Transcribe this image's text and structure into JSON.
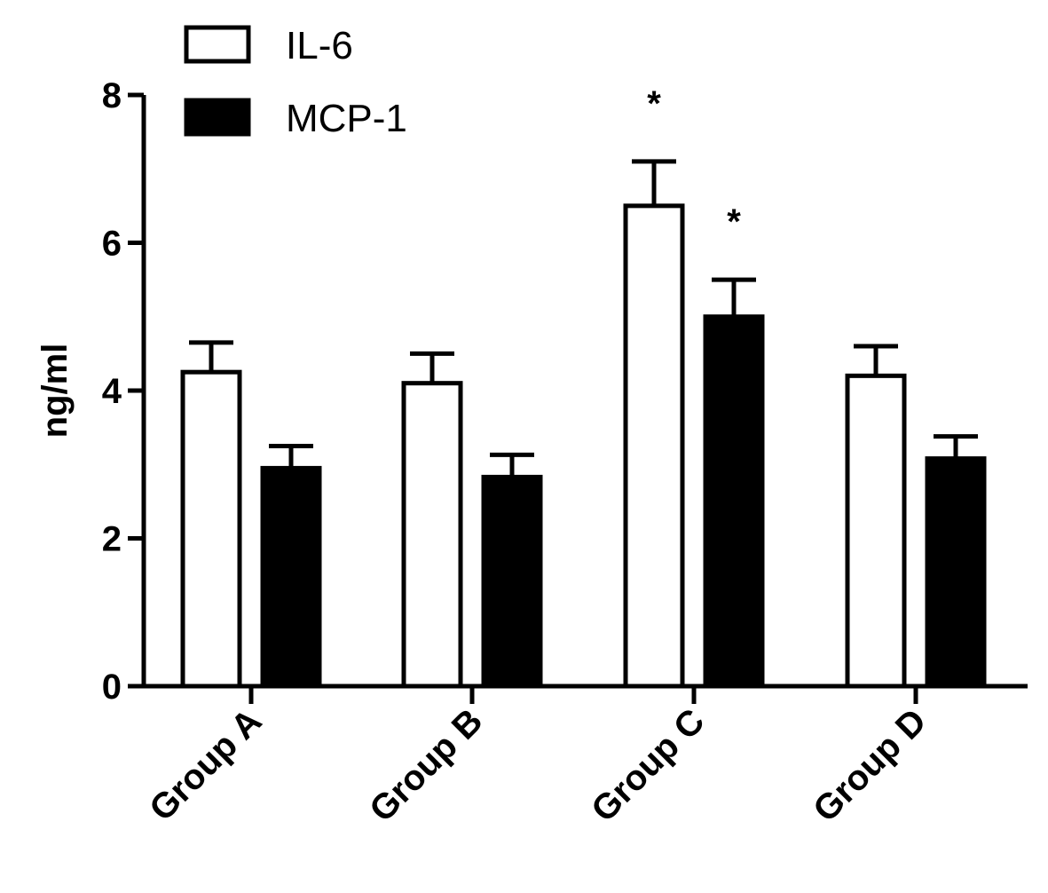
{
  "chart_data": {
    "type": "bar",
    "title": "",
    "xlabel": "",
    "ylabel": "ng/ml",
    "ylim": [
      0,
      8
    ],
    "yticks": [
      "0",
      "2",
      "4",
      "6",
      "8"
    ],
    "grid": false,
    "legend_position": "top-left",
    "categories": [
      "Group A",
      "Group B",
      "Group C",
      "Group D"
    ],
    "series": [
      {
        "name": "IL-6",
        "fill": "#ffffff",
        "stroke": "#000000",
        "values": [
          4.25,
          4.1,
          6.5,
          4.2
        ],
        "errors": [
          0.4,
          0.4,
          0.6,
          0.4
        ],
        "annotations": [
          "",
          "",
          "*",
          ""
        ]
      },
      {
        "name": "MCP-1",
        "fill": "#000000",
        "stroke": "#000000",
        "values": [
          2.95,
          2.83,
          5.0,
          3.08
        ],
        "errors": [
          0.3,
          0.3,
          0.5,
          0.3
        ],
        "annotations": [
          "",
          "",
          "*",
          ""
        ]
      }
    ]
  }
}
